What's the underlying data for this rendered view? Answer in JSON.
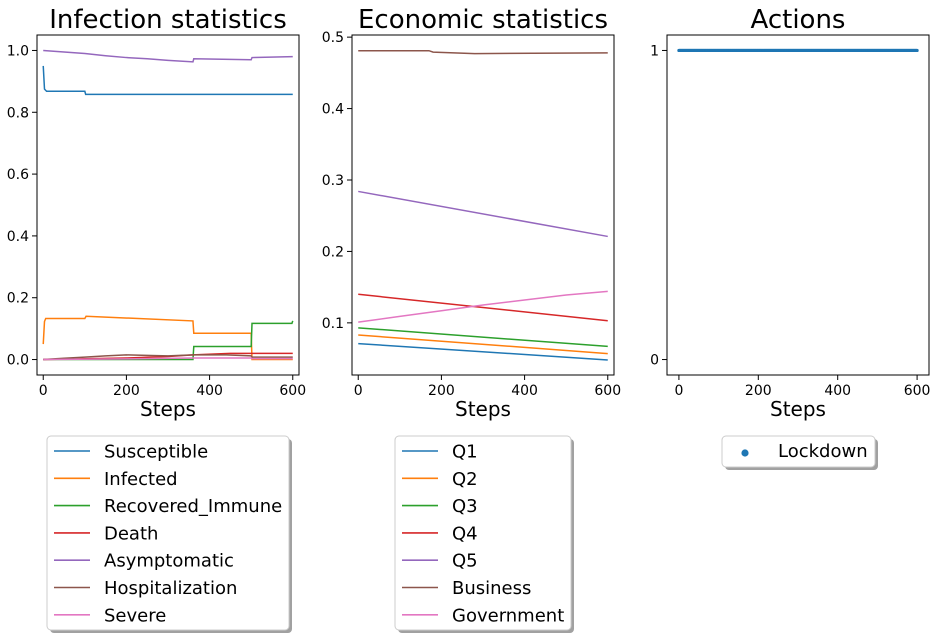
{
  "chart_data": [
    {
      "type": "line",
      "title": "Infection statistics",
      "xlabel": "Steps",
      "ylabel": "",
      "xlim": [
        -15,
        615
      ],
      "ylim": [
        -0.05,
        1.05
      ],
      "xticks": [
        0,
        200,
        400,
        600
      ],
      "yticks": [
        0.0,
        0.2,
        0.4,
        0.6,
        0.8,
        1.0
      ],
      "ytick_labels": [
        "0.0",
        "0.2",
        "0.4",
        "0.6",
        "0.8",
        "1.0"
      ],
      "grid": false,
      "legend_placement": "below",
      "series": [
        {
          "name": "Susceptible",
          "color": "#1f77b4",
          "step": true,
          "points": [
            [
              0,
              0.95
            ],
            [
              3,
              0.875
            ],
            [
              8,
              0.868
            ],
            [
              100,
              0.868
            ],
            [
              102,
              0.858
            ],
            [
              600,
              0.858
            ]
          ]
        },
        {
          "name": "Infected",
          "color": "#ff7f0e",
          "step": true,
          "points": [
            [
              0,
              0.05
            ],
            [
              3,
              0.123
            ],
            [
              6,
              0.133
            ],
            [
              100,
              0.133
            ],
            [
              103,
              0.14
            ],
            [
              360,
              0.125
            ],
            [
              362,
              0.085
            ],
            [
              500,
              0.085
            ],
            [
              502,
              0.0
            ],
            [
              600,
              0.0
            ]
          ]
        },
        {
          "name": "Recovered_Immune",
          "color": "#2ca02c",
          "step": true,
          "points": [
            [
              0,
              0.0
            ],
            [
              360,
              0.0
            ],
            [
              362,
              0.042
            ],
            [
              500,
              0.042
            ],
            [
              502,
              0.117
            ],
            [
              598,
              0.117
            ],
            [
              600,
              0.125
            ]
          ]
        },
        {
          "name": "Death",
          "color": "#d62728",
          "step": true,
          "points": [
            [
              0,
              0.0
            ],
            [
              200,
              0.005
            ],
            [
              300,
              0.01
            ],
            [
              360,
              0.015
            ],
            [
              450,
              0.02
            ],
            [
              600,
              0.02
            ]
          ]
        },
        {
          "name": "Asymptomatic",
          "color": "#9467bd",
          "step": true,
          "points": [
            [
              0,
              1.0
            ],
            [
              50,
              0.995
            ],
            [
              100,
              0.99
            ],
            [
              150,
              0.983
            ],
            [
              200,
              0.977
            ],
            [
              250,
              0.973
            ],
            [
              300,
              0.968
            ],
            [
              360,
              0.963
            ],
            [
              362,
              0.973
            ],
            [
              500,
              0.97
            ],
            [
              502,
              0.977
            ],
            [
              600,
              0.98
            ]
          ]
        },
        {
          "name": "Hospitalization",
          "color": "#8c564b",
          "step": true,
          "points": [
            [
              0,
              0.0
            ],
            [
              50,
              0.004
            ],
            [
              100,
              0.008
            ],
            [
              150,
              0.012
            ],
            [
              200,
              0.015
            ],
            [
              260,
              0.013
            ],
            [
              300,
              0.012
            ],
            [
              360,
              0.015
            ],
            [
              440,
              0.015
            ],
            [
              500,
              0.012
            ],
            [
              502,
              0.008
            ],
            [
              600,
              0.008
            ]
          ]
        },
        {
          "name": "Severe",
          "color": "#e377c2",
          "step": true,
          "points": [
            [
              0,
              0.0
            ],
            [
              200,
              0.002
            ],
            [
              360,
              0.005
            ],
            [
              500,
              0.005
            ],
            [
              502,
              0.003
            ],
            [
              600,
              0.003
            ]
          ]
        }
      ]
    },
    {
      "type": "line",
      "title": "Economic statistics",
      "xlabel": "Steps",
      "ylabel": "",
      "xlim": [
        -15,
        615
      ],
      "ylim": [
        0.027,
        0.503
      ],
      "xticks": [
        0,
        200,
        400,
        600
      ],
      "yticks": [
        0.1,
        0.2,
        0.3,
        0.4,
        0.5
      ],
      "ytick_labels": [
        "0.1",
        "0.2",
        "0.3",
        "0.4",
        "0.5"
      ],
      "grid": false,
      "legend_placement": "below",
      "series": [
        {
          "name": "Q1",
          "color": "#1f77b4",
          "points": [
            [
              0,
              0.071
            ],
            [
              600,
              0.048
            ]
          ]
        },
        {
          "name": "Q2",
          "color": "#ff7f0e",
          "points": [
            [
              0,
              0.083
            ],
            [
              600,
              0.057
            ]
          ]
        },
        {
          "name": "Q3",
          "color": "#2ca02c",
          "points": [
            [
              0,
              0.093
            ],
            [
              600,
              0.067
            ]
          ]
        },
        {
          "name": "Q4",
          "color": "#d62728",
          "points": [
            [
              0,
              0.14
            ],
            [
              600,
              0.103
            ]
          ]
        },
        {
          "name": "Q5",
          "color": "#9467bd",
          "points": [
            [
              0,
              0.284
            ],
            [
              600,
              0.221
            ]
          ]
        },
        {
          "name": "Business",
          "color": "#8c564b",
          "step": true,
          "points": [
            [
              0,
              0.481
            ],
            [
              170,
              0.481
            ],
            [
              180,
              0.479
            ],
            [
              280,
              0.477
            ],
            [
              600,
              0.478
            ]
          ]
        },
        {
          "name": "Government",
          "color": "#e377c2",
          "step": true,
          "points": [
            [
              0,
              0.101
            ],
            [
              100,
              0.109
            ],
            [
              200,
              0.117
            ],
            [
              300,
              0.125
            ],
            [
              400,
              0.132
            ],
            [
              500,
              0.139
            ],
            [
              600,
              0.144
            ]
          ]
        }
      ]
    },
    {
      "type": "scatter",
      "title": "Actions",
      "xlabel": "Steps",
      "ylabel": "",
      "xlim": [
        -30,
        630
      ],
      "ylim": [
        -0.05,
        1.05
      ],
      "xticks": [
        0,
        200,
        400,
        600
      ],
      "yticks": [
        0,
        1
      ],
      "ytick_labels": [
        "0",
        "1"
      ],
      "grid": false,
      "legend_placement": "below",
      "series": [
        {
          "name": "Lockdown",
          "color": "#1f77b4",
          "range": [
            0,
            600
          ],
          "value": 1
        }
      ]
    }
  ]
}
